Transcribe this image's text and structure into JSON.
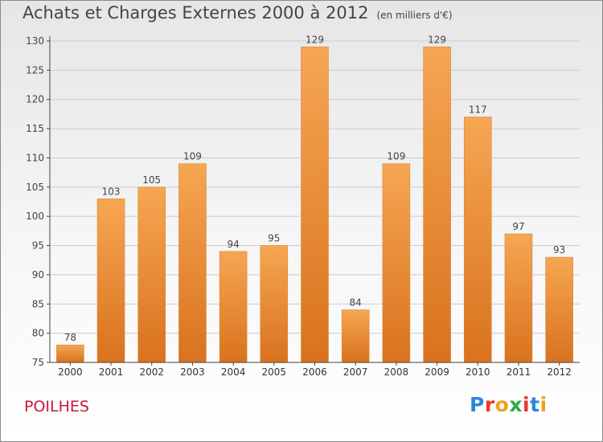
{
  "header": {
    "title": "Achats et Charges Externes 2000 à 2012",
    "unit": "(en milliers d'€)"
  },
  "commune": "POILHES",
  "logo": {
    "text": "Proxiti",
    "letter_colors": [
      "#2f86d8",
      "#e8382c",
      "#f0a020",
      "#35a845",
      "#e8382c",
      "#2f86d8",
      "#f0a020"
    ]
  },
  "colors": {
    "bar_top": "#f6a652",
    "bar_bottom": "#d9721e",
    "axis": "#444444",
    "grid": "#cccccc"
  },
  "chart_data": {
    "type": "bar",
    "title": "Achats et Charges Externes 2000 à 2012",
    "subtitle": "(en milliers d'€)",
    "xlabel": "",
    "ylabel": "",
    "categories": [
      "2000",
      "2001",
      "2002",
      "2003",
      "2004",
      "2005",
      "2006",
      "2007",
      "2008",
      "2009",
      "2010",
      "2011",
      "2012"
    ],
    "values": [
      78,
      103,
      105,
      109,
      94,
      95,
      129,
      84,
      109,
      129,
      117,
      97,
      93
    ],
    "ylim": [
      75,
      130
    ],
    "yticks": [
      75,
      80,
      85,
      90,
      95,
      100,
      105,
      110,
      115,
      120,
      125,
      130
    ],
    "grid": true,
    "legend": "none"
  }
}
